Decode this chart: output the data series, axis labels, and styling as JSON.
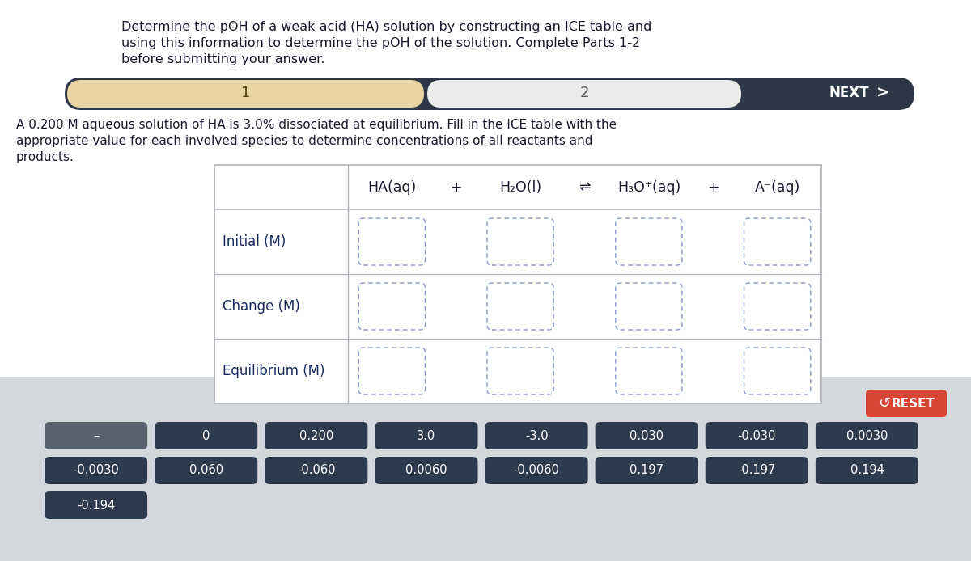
{
  "title_line1": "Determine the pOH of a weak acid (HA) solution by constructing an ICE table and",
  "title_line2": "using this information to determine the pOH of the solution. Complete Parts 1-2",
  "title_line3": "before submitting your answer.",
  "desc_line1": "A 0.200 M aqueous solution of HA is 3.0% dissociated at equilibrium. Fill in the ICE table with the",
  "desc_line2": "appropriate value for each involved species to determine concentrations of all reactants and",
  "desc_line3": "products.",
  "nav_bg": "#2d3748",
  "nav_tab1_bg": "#e8d5a3",
  "nav_tab2_bg": "#ebebeb",
  "nav_tab1_text": "1",
  "nav_tab2_text": "2",
  "nav_next_text": "NEXT",
  "bottom_bg": "#d4d7dc",
  "reset_bg": "#d94535",
  "reset_text": "RESET",
  "button_row1": [
    "–",
    "0",
    "0.200",
    "3.0",
    "-3.0",
    "0.030",
    "-0.030",
    "0.0030"
  ],
  "button_row2": [
    "-0.0030",
    "0.060",
    "-0.060",
    "0.0060",
    "-0.0060",
    "0.197",
    "-0.197",
    "0.194"
  ],
  "button_row3": [
    "-0.194"
  ],
  "btn_dark_bg": "#2d3b4e",
  "btn_gray_bg": "#5a6270",
  "btn_text_color": "#ffffff",
  "white_bg": "#ffffff",
  "text_dark": "#1a1a2e",
  "text_navy": "#1a2a5e",
  "table_line_color": "#b0b0b8",
  "input_border_color": "#8899cc"
}
